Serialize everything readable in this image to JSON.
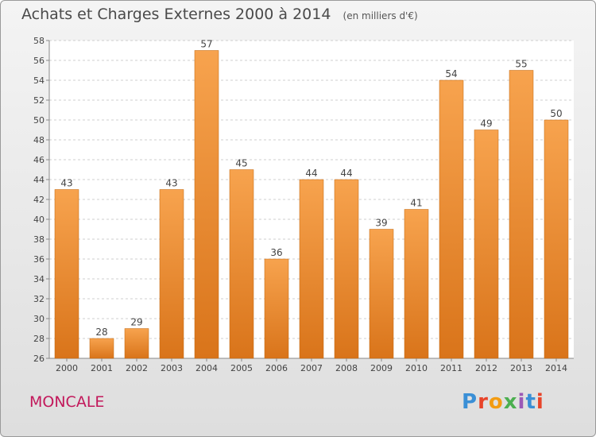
{
  "header": {
    "title": "Achats et Charges Externes 2000 à 2014",
    "unit": "(en milliers d'€)"
  },
  "footer": {
    "place": "MONCALE",
    "logo": "Proxiti"
  },
  "colors": {
    "bar_light": "#f7a34e",
    "bar_dark": "#d9741a",
    "place_text": "#c2185b"
  },
  "chart_data": {
    "type": "bar",
    "title": "Achats et Charges Externes 2000 à 2014",
    "categories": [
      "2000",
      "2001",
      "2002",
      "2003",
      "2004",
      "2005",
      "2006",
      "2007",
      "2008",
      "2009",
      "2010",
      "2011",
      "2012",
      "2013",
      "2014"
    ],
    "values": [
      43,
      28,
      29,
      43,
      57,
      45,
      36,
      44,
      44,
      39,
      41,
      54,
      49,
      55,
      50
    ],
    "ylim": [
      26,
      58
    ],
    "yticks": [
      26,
      28,
      30,
      32,
      34,
      36,
      38,
      40,
      42,
      44,
      46,
      48,
      50,
      52,
      54,
      56,
      58
    ],
    "grid": true,
    "legend": "none"
  }
}
